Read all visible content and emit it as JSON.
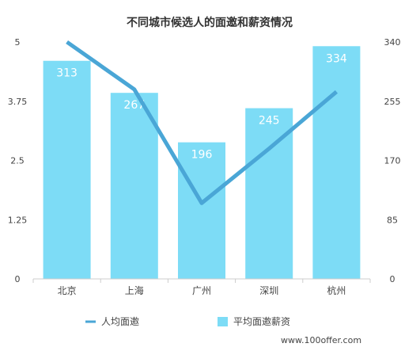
{
  "chart_data": {
    "type": "bar",
    "title": "不同城市候选人的面邀和薪资情况",
    "categories": [
      "北京",
      "上海",
      "广州",
      "深圳",
      "杭州"
    ],
    "series": [
      {
        "name": "平均面邀薪资",
        "type": "bar",
        "axis": "right",
        "values": [
          313,
          267,
          196,
          245,
          334
        ]
      },
      {
        "name": "人均面邀",
        "type": "line",
        "axis": "left",
        "values": [
          5.0,
          4.0,
          1.6,
          2.75,
          3.95
        ]
      }
    ],
    "left_axis": {
      "ylim": [
        0,
        5
      ],
      "ticks": [
        "0",
        "1.25",
        "2.5",
        "3.75",
        "5"
      ]
    },
    "right_axis": {
      "ylim": [
        0,
        340
      ],
      "ticks": [
        "0",
        "85",
        "170",
        "255",
        "340"
      ]
    },
    "legend_position": "bottom",
    "grid": false,
    "colors": {
      "bar": "#7ddcf6",
      "line": "#4aa6d6",
      "axis": "#cccccc"
    }
  },
  "watermark": "www.100offer.com"
}
